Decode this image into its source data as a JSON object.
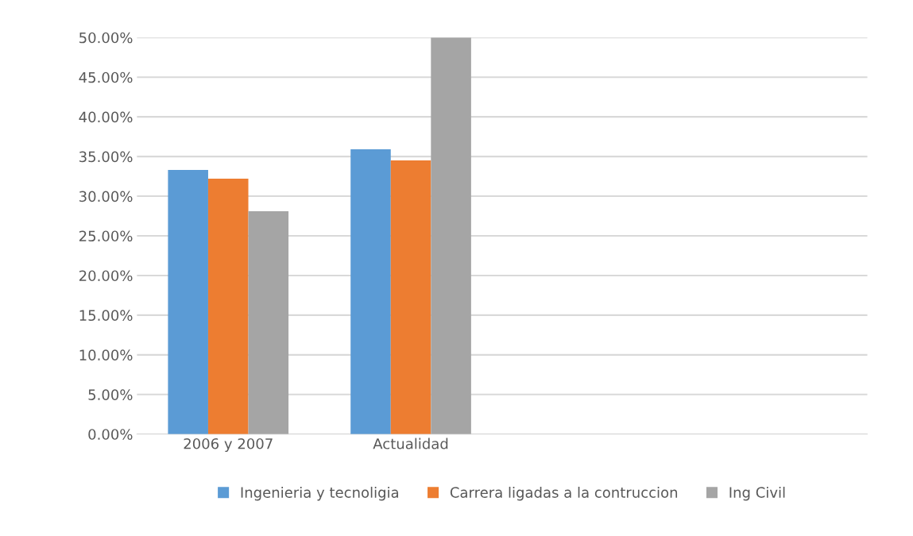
{
  "chart_data": {
    "type": "bar",
    "categories": [
      "2006 y 2007",
      "Actualidad",
      null,
      null
    ],
    "series": [
      {
        "name": "Ingenieria y tecnoligia",
        "color": "#5b9bd5",
        "values": [
          33.3,
          35.9,
          null,
          null
        ]
      },
      {
        "name": "Carrera ligadas a la contruccion",
        "color": "#ed7d31",
        "values": [
          32.2,
          34.5,
          null,
          null
        ]
      },
      {
        "name": "Ing Civil",
        "color": "#a5a5a5",
        "values": [
          28.1,
          50.0,
          null,
          null
        ]
      }
    ],
    "ylim": [
      0,
      50
    ],
    "yticks": [
      {
        "value": 0,
        "label": "0.00%"
      },
      {
        "value": 5,
        "label": "5.00%"
      },
      {
        "value": 10,
        "label": "10.00%"
      },
      {
        "value": 15,
        "label": "15.00%"
      },
      {
        "value": 20,
        "label": "20.00%"
      },
      {
        "value": 25,
        "label": "25.00%"
      },
      {
        "value": 30,
        "label": "30.00%"
      },
      {
        "value": 35,
        "label": "35.00%"
      },
      {
        "value": 40,
        "label": "40.00%"
      },
      {
        "value": 45,
        "label": "45.00%"
      },
      {
        "value": 50,
        "label": "50.00%"
      }
    ],
    "grid": "y",
    "legend": "bottom"
  }
}
